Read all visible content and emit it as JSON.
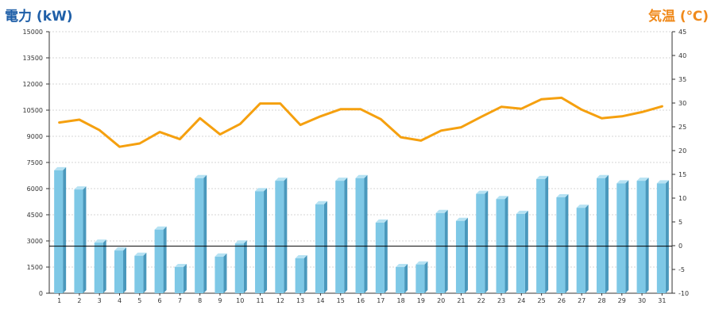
{
  "chart_data": {
    "type": "bar",
    "ylabel_left": "電力 (kW)",
    "ylabel_right": "気温 (℃)",
    "categories": [
      "1",
      "2",
      "3",
      "4",
      "5",
      "6",
      "7",
      "8",
      "9",
      "10",
      "11",
      "12",
      "13",
      "14",
      "15",
      "16",
      "17",
      "18",
      "19",
      "20",
      "21",
      "22",
      "23",
      "24",
      "25",
      "26",
      "27",
      "28",
      "29",
      "30",
      "31"
    ],
    "ylim_left": [
      0,
      15000
    ],
    "yticks_left": [
      0,
      1500,
      3000,
      4500,
      6000,
      7500,
      9000,
      10500,
      12000,
      13500,
      15000
    ],
    "ylim_right": [
      -10,
      45
    ],
    "yticks_right": [
      -10,
      -5,
      0,
      5,
      10,
      15,
      20,
      25,
      30,
      35,
      40,
      45
    ],
    "grid": true,
    "series": [
      {
        "type": "bar",
        "axis": "left",
        "values": [
          7050,
          5950,
          2900,
          2450,
          2150,
          3650,
          1500,
          6600,
          2100,
          2850,
          5850,
          6450,
          2000,
          5100,
          6450,
          6600,
          4050,
          1500,
          1650,
          4600,
          4150,
          5700,
          5400,
          4550,
          6550,
          5500,
          4900,
          6600,
          6300,
          6450,
          6300
        ]
      },
      {
        "type": "line",
        "axis": "right",
        "values": [
          25.9,
          26.5,
          24.3,
          20.8,
          21.5,
          23.9,
          22.4,
          26.8,
          23.4,
          25.6,
          29.9,
          29.9,
          25.4,
          27.2,
          28.7,
          28.7,
          26.6,
          22.8,
          22.1,
          24.2,
          24.9,
          27.1,
          29.2,
          28.8,
          30.8,
          31.1,
          28.6,
          26.8,
          27.2,
          28.1,
          29.3
        ]
      }
    ],
    "reference_line": {
      "axis": "left",
      "value": 2700
    },
    "colors": {
      "bar_front": "#7ec8e6",
      "bar_side": "#4a98bc",
      "bar_top": "#b6e2f3",
      "line": "#f5a00f",
      "grid": "#c8c8c8",
      "axis": "#333333",
      "left_label": "#1f5fa8",
      "right_label": "#f08a1c"
    }
  }
}
